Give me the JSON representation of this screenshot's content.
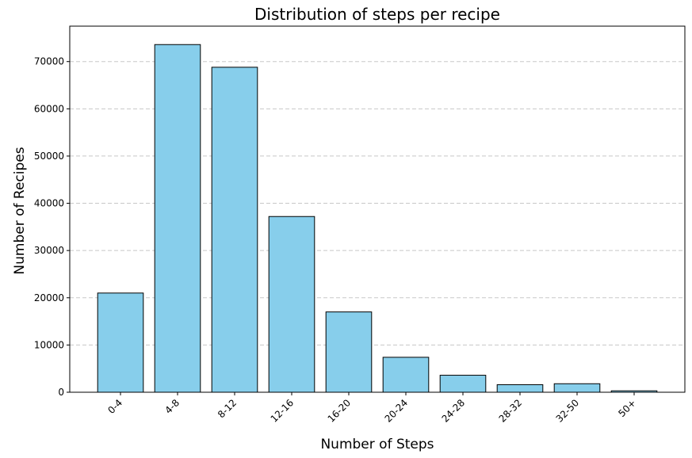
{
  "chart_data": {
    "type": "bar",
    "title": "Distribution of steps per recipe",
    "xlabel": "Number of Steps",
    "ylabel": "Number of Recipes",
    "categories": [
      "0-4",
      "4-8",
      "8-12",
      "12-16",
      "16-20",
      "20-24",
      "24-28",
      "28-32",
      "32-50",
      "50+"
    ],
    "values": [
      21000,
      73600,
      68800,
      37200,
      17000,
      7400,
      3600,
      1600,
      1800,
      300
    ],
    "ylim": [
      0,
      77500
    ],
    "yticks": [
      0,
      10000,
      20000,
      30000,
      40000,
      50000,
      60000,
      70000
    ],
    "grid": "y-dashed",
    "colors": {
      "bar_fill": "#87ceeb",
      "bar_edge": "#000000",
      "grid": "#c8c8c8"
    }
  }
}
